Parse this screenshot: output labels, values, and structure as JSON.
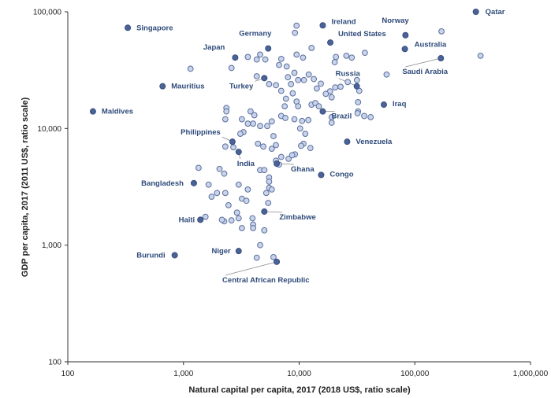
{
  "chart_data": {
    "type": "scatter",
    "title": "",
    "xlabel": "Natural capital per capita, 2017 (2018 US$, ratio scale)",
    "ylabel": "GDP per capita, 2017 (2011 US$, ratio scale)",
    "x_scale": "log",
    "y_scale": "log",
    "xlim": [
      100,
      1000000
    ],
    "ylim": [
      100,
      100000
    ],
    "x_ticks": [
      100,
      1000,
      10000,
      100000,
      1000000
    ],
    "y_ticks": [
      100,
      1000,
      10000,
      100000
    ],
    "x_tick_labels": [
      "100",
      "1,000",
      "10,000",
      "100,000",
      "1,000,000"
    ],
    "y_tick_labels": [
      "100",
      "1,000",
      "10,000",
      "100,000"
    ],
    "grid": false,
    "colors": {
      "labeled": "#4a6296",
      "unlabeled_fill": "#c9d4ec",
      "unlabeled_stroke": "#5b6f9c",
      "label_text": "#2e4a7a",
      "leader": "#8a8a8a"
    },
    "labeled_points": [
      {
        "name": "Qatar",
        "x": 337000,
        "y": 100000
      },
      {
        "name": "Ireland",
        "x": 16000,
        "y": 76500
      },
      {
        "name": "Norway",
        "x": 83000,
        "y": 63000
      },
      {
        "name": "Singapore",
        "x": 330,
        "y": 73000
      },
      {
        "name": "Germany",
        "x": 5400,
        "y": 48500
      },
      {
        "name": "United States",
        "x": 18600,
        "y": 54500
      },
      {
        "name": "Australia",
        "x": 82000,
        "y": 48000
      },
      {
        "name": "Japan",
        "x": 2800,
        "y": 40500
      },
      {
        "name": "Saudi Arabia",
        "x": 168000,
        "y": 40000
      },
      {
        "name": "Mauritius",
        "x": 660,
        "y": 23000
      },
      {
        "name": "Turkey",
        "x": 5000,
        "y": 27000
      },
      {
        "name": "Russia",
        "x": 31500,
        "y": 23000
      },
      {
        "name": "Maldives",
        "x": 165,
        "y": 14000
      },
      {
        "name": "Iraq",
        "x": 54000,
        "y": 16000
      },
      {
        "name": "Brazil",
        "x": 16000,
        "y": 14000
      },
      {
        "name": "Philippines",
        "x": 2650,
        "y": 7700
      },
      {
        "name": "Venezuela",
        "x": 26000,
        "y": 7700
      },
      {
        "name": "India",
        "x": 3000,
        "y": 6300
      },
      {
        "name": "Ghana",
        "x": 6400,
        "y": 5000
      },
      {
        "name": "Congo",
        "x": 15500,
        "y": 4000
      },
      {
        "name": "Bangladesh",
        "x": 1230,
        "y": 3400
      },
      {
        "name": "Zimbabwe",
        "x": 5000,
        "y": 1940
      },
      {
        "name": "Haiti",
        "x": 1400,
        "y": 1650
      },
      {
        "name": "Niger",
        "x": 3000,
        "y": 890
      },
      {
        "name": "Burundi",
        "x": 840,
        "y": 820
      },
      {
        "name": "Central African Republic",
        "x": 6400,
        "y": 720
      }
    ],
    "other_points": [
      [
        9500,
        76000
      ],
      [
        9200,
        66000
      ],
      [
        170000,
        68000
      ],
      [
        370000,
        42000
      ],
      [
        2600,
        33000
      ],
      [
        3600,
        41000
      ],
      [
        4300,
        39000
      ],
      [
        5100,
        39000
      ],
      [
        4600,
        43000
      ],
      [
        7000,
        39500
      ],
      [
        9500,
        43000
      ],
      [
        10800,
        40500
      ],
      [
        12800,
        49000
      ],
      [
        6700,
        35000
      ],
      [
        7800,
        34000
      ],
      [
        9100,
        30000
      ],
      [
        9800,
        26000
      ],
      [
        11000,
        26000
      ],
      [
        12100,
        29000
      ],
      [
        13400,
        26500
      ],
      [
        15400,
        24200
      ],
      [
        14200,
        22000
      ],
      [
        20800,
        41000
      ],
      [
        20300,
        37000
      ],
      [
        25600,
        42000
      ],
      [
        28500,
        40500
      ],
      [
        31600,
        26000
      ],
      [
        37000,
        44500
      ],
      [
        57000,
        29000
      ],
      [
        33100,
        21000
      ],
      [
        26300,
        25000
      ],
      [
        22800,
        22800
      ],
      [
        20500,
        22500
      ],
      [
        18500,
        20800
      ],
      [
        17000,
        19800
      ],
      [
        6300,
        23500
      ],
      [
        5500,
        24000
      ],
      [
        4300,
        28000
      ],
      [
        8000,
        27500
      ],
      [
        8500,
        24000
      ],
      [
        7000,
        21000
      ],
      [
        8800,
        20000
      ],
      [
        7700,
        18000
      ],
      [
        9500,
        17000
      ],
      [
        7500,
        15500
      ],
      [
        9800,
        15500
      ],
      [
        12800,
        16000
      ],
      [
        13800,
        16500
      ],
      [
        14800,
        15500
      ],
      [
        19100,
        18500
      ],
      [
        32300,
        16800
      ],
      [
        32300,
        14000
      ],
      [
        32000,
        13500
      ],
      [
        36500,
        12800
      ],
      [
        41500,
        12500
      ],
      [
        19100,
        12500
      ],
      [
        19100,
        11200
      ],
      [
        1150,
        32500
      ],
      [
        2350,
        15000
      ],
      [
        2350,
        14000
      ],
      [
        2300,
        12000
      ],
      [
        3200,
        12000
      ],
      [
        3800,
        14000
      ],
      [
        4100,
        13000
      ],
      [
        3600,
        11000
      ],
      [
        4000,
        11000
      ],
      [
        4600,
        10500
      ],
      [
        5300,
        10500
      ],
      [
        5800,
        11500
      ],
      [
        6000,
        8600
      ],
      [
        7000,
        12800
      ],
      [
        7600,
        12300
      ],
      [
        9100,
        12000
      ],
      [
        10600,
        11600
      ],
      [
        12000,
        11800
      ],
      [
        11300,
        9000
      ],
      [
        10200,
        10000
      ],
      [
        10900,
        7400
      ],
      [
        10400,
        7100
      ],
      [
        12500,
        6800
      ],
      [
        9200,
        6000
      ],
      [
        3300,
        9300
      ],
      [
        3100,
        9000
      ],
      [
        2300,
        7000
      ],
      [
        2700,
        6900
      ],
      [
        4400,
        7400
      ],
      [
        4900,
        7000
      ],
      [
        5800,
        6700
      ],
      [
        6300,
        7200
      ],
      [
        7000,
        5700
      ],
      [
        8100,
        5500
      ],
      [
        8700,
        5900
      ],
      [
        6300,
        5300
      ],
      [
        6700,
        4900
      ],
      [
        4600,
        4400
      ],
      [
        5000,
        4400
      ],
      [
        1350,
        4600
      ],
      [
        2050,
        4500
      ],
      [
        2250,
        4100
      ],
      [
        5500,
        3800
      ],
      [
        5500,
        3500
      ],
      [
        5500,
        3100
      ],
      [
        5800,
        3000
      ],
      [
        5200,
        2800
      ],
      [
        3000,
        3300
      ],
      [
        3600,
        3000
      ],
      [
        1650,
        3300
      ],
      [
        1950,
        2800
      ],
      [
        1750,
        2600
      ],
      [
        2300,
        2800
      ],
      [
        2450,
        2200
      ],
      [
        3200,
        2500
      ],
      [
        3500,
        2400
      ],
      [
        5400,
        2300
      ],
      [
        2900,
        1900
      ],
      [
        3000,
        1700
      ],
      [
        4000,
        1500
      ],
      [
        3200,
        1400
      ],
      [
        5000,
        1340
      ],
      [
        3950,
        1700
      ],
      [
        2600,
        1630
      ],
      [
        2250,
        1600
      ],
      [
        2150,
        1650
      ],
      [
        1550,
        1750
      ],
      [
        1400,
        1650
      ],
      [
        4000,
        1400
      ],
      [
        4600,
        1000
      ],
      [
        4300,
        780
      ],
      [
        6000,
        790
      ]
    ]
  }
}
